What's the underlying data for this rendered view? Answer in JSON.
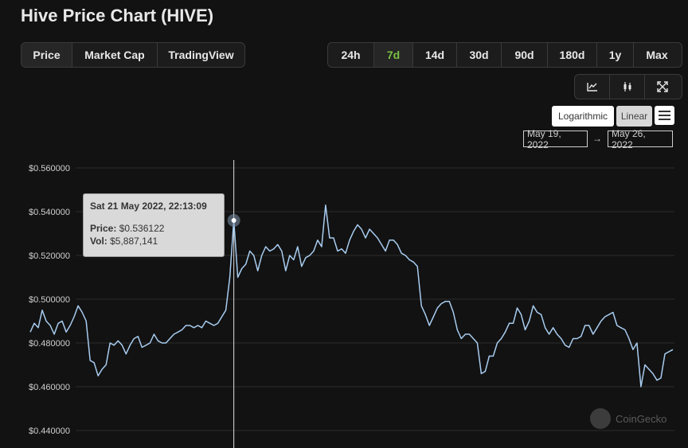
{
  "page": {
    "title": "Hive Price Chart (HIVE)"
  },
  "tabs": [
    {
      "label": "Price",
      "active": true
    },
    {
      "label": "Market Cap",
      "active": false
    },
    {
      "label": "TradingView",
      "active": false
    }
  ],
  "ranges": [
    {
      "label": "24h",
      "active": false
    },
    {
      "label": "7d",
      "active": true
    },
    {
      "label": "14d",
      "active": false
    },
    {
      "label": "30d",
      "active": false
    },
    {
      "label": "90d",
      "active": false
    },
    {
      "label": "180d",
      "active": false
    },
    {
      "label": "1y",
      "active": false
    },
    {
      "label": "Max",
      "active": false
    }
  ],
  "chart_tools": [
    "line-chart-icon",
    "candlestick-icon",
    "fullscreen-icon"
  ],
  "scale": {
    "logarithmic": "Logarithmic",
    "linear": "Linear"
  },
  "date_range": {
    "from": "May 19, 2022",
    "arrow": "→",
    "to": "May 26, 2022"
  },
  "tooltip": {
    "date": "Sat 21 May 2022, 22:13:09",
    "price_label": "Price:",
    "price_value": "$0.536122",
    "vol_label": "Vol:",
    "vol_value": "$5,887,141"
  },
  "watermark": "CoinGecko",
  "colors": {
    "line": "#a8ccf0",
    "background": "#121212",
    "grid": "#2c2c2c",
    "active_range": "#7cc144"
  },
  "chart_data": {
    "type": "line",
    "title": "Hive Price Chart (HIVE)",
    "xlabel": "",
    "ylabel": "",
    "x_range": [
      "May 19, 2022",
      "May 26, 2022"
    ],
    "ylim": [
      0.44,
      0.56
    ],
    "y_ticks": [
      "$0.560000",
      "$0.540000",
      "$0.520000",
      "$0.500000",
      "$0.480000",
      "$0.460000",
      "$0.440000"
    ],
    "grid": true,
    "highlight_index": 51,
    "series": [
      {
        "values": [
          0.485,
          0.489,
          0.487,
          0.495,
          0.49,
          0.488,
          0.484,
          0.489,
          0.49,
          0.485,
          0.488,
          0.492,
          0.497,
          0.494,
          0.49,
          0.472,
          0.471,
          0.465,
          0.468,
          0.47,
          0.48,
          0.479,
          0.481,
          0.479,
          0.475,
          0.479,
          0.482,
          0.483,
          0.478,
          0.479,
          0.48,
          0.484,
          0.481,
          0.48,
          0.48,
          0.482,
          0.484,
          0.485,
          0.486,
          0.488,
          0.488,
          0.487,
          0.488,
          0.487,
          0.49,
          0.489,
          0.488,
          0.489,
          0.492,
          0.495,
          0.51,
          0.536,
          0.51,
          0.514,
          0.516,
          0.522,
          0.52,
          0.513,
          0.52,
          0.524,
          0.522,
          0.523,
          0.525,
          0.522,
          0.513,
          0.52,
          0.518,
          0.524,
          0.515,
          0.519,
          0.52,
          0.522,
          0.527,
          0.524,
          0.543,
          0.528,
          0.528,
          0.522,
          0.523,
          0.521,
          0.527,
          0.531,
          0.534,
          0.532,
          0.528,
          0.532,
          0.53,
          0.528,
          0.525,
          0.522,
          0.527,
          0.527,
          0.525,
          0.521,
          0.52,
          0.518,
          0.517,
          0.515,
          0.497,
          0.493,
          0.488,
          0.492,
          0.496,
          0.498,
          0.499,
          0.499,
          0.494,
          0.486,
          0.482,
          0.484,
          0.484,
          0.482,
          0.48,
          0.466,
          0.467,
          0.474,
          0.474,
          0.48,
          0.482,
          0.485,
          0.489,
          0.489,
          0.496,
          0.493,
          0.486,
          0.49,
          0.497,
          0.494,
          0.493,
          0.487,
          0.484,
          0.487,
          0.484,
          0.482,
          0.479,
          0.478,
          0.482,
          0.482,
          0.483,
          0.488,
          0.488,
          0.484,
          0.487,
          0.49,
          0.492,
          0.493,
          0.494,
          0.488,
          0.487,
          0.486,
          0.482,
          0.477,
          0.48,
          0.46,
          0.47,
          0.468,
          0.466,
          0.463,
          0.464,
          0.475,
          0.476,
          0.477
        ]
      }
    ]
  }
}
